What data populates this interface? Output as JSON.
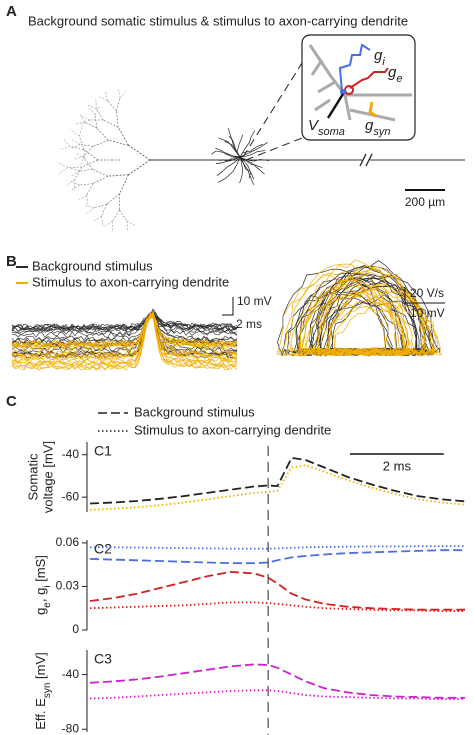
{
  "panel_a": {
    "label": "A",
    "title": "Background somatic stimulus & stimulus to axon-carrying dendrite",
    "inset": {
      "gi": {
        "base": "g",
        "sub": "i"
      },
      "ge": {
        "base": "g",
        "sub": "e"
      },
      "vsoma": {
        "base": "V",
        "sub": "soma"
      },
      "gsyn": {
        "base": "g",
        "sub": "syn"
      }
    },
    "scale_bar": "200 µm"
  },
  "panel_b": {
    "label": "B",
    "legend": [
      {
        "name": "Background stimulus",
        "color": "#2b2b2b"
      },
      {
        "name": "Stimulus to axon-carrying dendrite",
        "color": "#f2ae00"
      }
    ],
    "left_scale": {
      "v": "10 mV",
      "t": "2 ms"
    },
    "right_scale": {
      "dv": "20 V/s",
      "v": "10 mV"
    }
  },
  "panel_c": {
    "label": "C",
    "legend": [
      {
        "name": "Background stimulus",
        "dash": "dashed"
      },
      {
        "name": "Stimulus to axon-carrying dendrite",
        "dash": "dotted"
      }
    ],
    "stimulus_time": 3.8,
    "scale_bar": {
      "value": 2,
      "label": "2 ms"
    }
  },
  "chart_data": [
    {
      "type": "line",
      "panel": "C1",
      "ylabel": [
        "Somatic",
        "voltage [mV]"
      ],
      "xlim": [
        0,
        8
      ],
      "ylim": [
        -67,
        -34
      ],
      "yticks": [
        -40,
        -60
      ],
      "x": [
        0,
        0.5,
        1,
        1.5,
        2,
        2.5,
        3,
        3.5,
        3.8,
        4.0,
        4.3,
        4.6,
        5,
        5.5,
        6,
        6.5,
        7,
        7.5,
        8
      ],
      "series": [
        {
          "color": "#222222",
          "dash": "dashed",
          "values": [
            -63,
            -62.5,
            -61.8,
            -60.8,
            -59.5,
            -58,
            -56.5,
            -55,
            -54.5,
            -54.8,
            -41.5,
            -42.5,
            -46,
            -50.5,
            -54,
            -57,
            -59.5,
            -61,
            -62
          ]
        },
        {
          "color": "#f2ae00",
          "dash": "dotted",
          "values": [
            -66,
            -65.5,
            -64.8,
            -63.8,
            -62.5,
            -61,
            -59.5,
            -58,
            -57.5,
            -57,
            -46,
            -45,
            -48,
            -52,
            -55.5,
            -58.5,
            -61,
            -62.5,
            -63.5
          ]
        }
      ]
    },
    {
      "type": "line",
      "panel": "C2",
      "ylabel": [
        [
          {
            "t": "g"
          },
          {
            "t": "e",
            "sub": true
          },
          {
            "t": ", g"
          },
          {
            "t": "i",
            "sub": true
          },
          {
            "t": " [mS]"
          }
        ]
      ],
      "xlim": [
        0,
        8
      ],
      "ylim": [
        0,
        0.062
      ],
      "yticks": [
        0.06,
        0.03,
        0
      ],
      "x": [
        0,
        0.5,
        1,
        1.5,
        2,
        2.5,
        3,
        3.5,
        3.8,
        4.0,
        4.3,
        4.6,
        5,
        5.5,
        6,
        6.5,
        7,
        7.5,
        8
      ],
      "series": [
        {
          "color": "#4a6fdc",
          "dash": "dotted",
          "values": [
            0.057,
            0.057,
            0.0568,
            0.0566,
            0.0564,
            0.0562,
            0.056,
            0.056,
            0.056,
            0.0562,
            0.0566,
            0.057,
            0.0572,
            0.0574,
            0.0576,
            0.0576,
            0.0577,
            0.0578,
            0.0578
          ]
        },
        {
          "color": "#4a6fdc",
          "dash": "dashed",
          "values": [
            0.049,
            0.0485,
            0.048,
            0.0475,
            0.047,
            0.0465,
            0.046,
            0.046,
            0.0465,
            0.048,
            0.05,
            0.051,
            0.052,
            0.053,
            0.0535,
            0.054,
            0.0545,
            0.055,
            0.055
          ]
        },
        {
          "color": "#d42020",
          "dash": "dashed",
          "values": [
            0.02,
            0.022,
            0.025,
            0.029,
            0.033,
            0.037,
            0.04,
            0.039,
            0.036,
            0.032,
            0.025,
            0.021,
            0.018,
            0.016,
            0.015,
            0.0145,
            0.014,
            0.014,
            0.014
          ]
        },
        {
          "color": "#d42020",
          "dash": "dotted",
          "values": [
            0.015,
            0.0155,
            0.016,
            0.0165,
            0.017,
            0.018,
            0.019,
            0.019,
            0.0185,
            0.018,
            0.017,
            0.016,
            0.015,
            0.0145,
            0.014,
            0.0135,
            0.0135,
            0.013,
            0.013
          ]
        }
      ]
    },
    {
      "type": "line",
      "panel": "C3",
      "ylabel": [
        [
          {
            "t": "Eff. E"
          },
          {
            "t": "syn",
            "sub": true
          },
          {
            "t": " [mV]"
          }
        ]
      ],
      "xlim": [
        0,
        8
      ],
      "ylim": [
        -82,
        -22
      ],
      "yticks": [
        -40,
        -80
      ],
      "x": [
        0,
        0.5,
        1,
        1.5,
        2,
        2.5,
        3,
        3.5,
        3.8,
        4.0,
        4.3,
        4.6,
        5,
        5.5,
        6,
        6.5,
        7,
        7.5,
        8
      ],
      "series": [
        {
          "color": "#cc22cc",
          "dash": "dashed",
          "values": [
            -46,
            -45,
            -43.5,
            -41.5,
            -39,
            -36.5,
            -34,
            -32.5,
            -33,
            -35,
            -40,
            -45,
            -50,
            -53,
            -55,
            -56,
            -56.5,
            -57,
            -57
          ]
        },
        {
          "color": "#cc22cc",
          "dash": "dotted",
          "values": [
            -57.5,
            -57,
            -56,
            -55,
            -54,
            -53,
            -52,
            -51.5,
            -51.5,
            -52,
            -53.5,
            -55,
            -56,
            -56.5,
            -57,
            -57.5,
            -57.5,
            -58,
            -58
          ]
        }
      ]
    }
  ]
}
